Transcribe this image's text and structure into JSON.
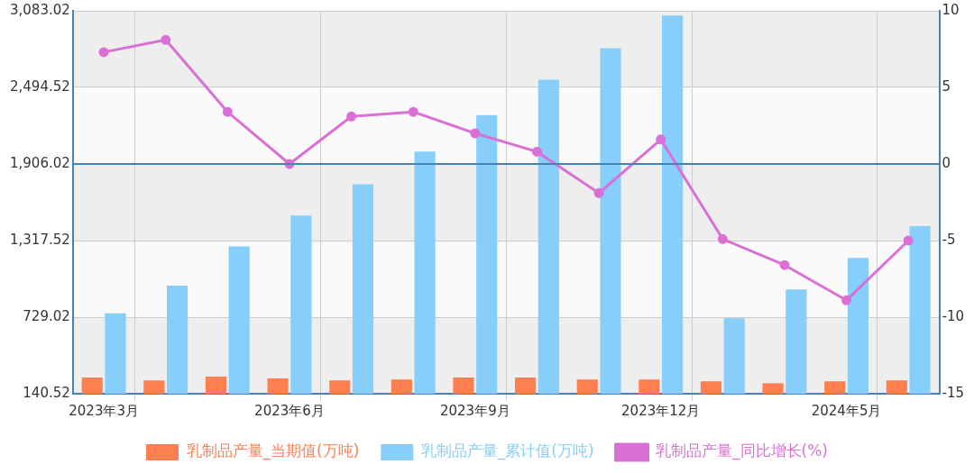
{
  "chart_data": {
    "type": "bar",
    "categories": [
      "2023年3月",
      null,
      null,
      "2023年6月",
      null,
      null,
      "2023年9月",
      null,
      null,
      "2023年12月",
      null,
      null,
      "2024年5月",
      null
    ],
    "series": [
      {
        "name": "乳制品产量_当期值(万吨)",
        "color": "#ff7f50",
        "values": [
          265,
          243,
          272,
          258,
          243,
          250,
          265,
          265,
          250,
          250,
          236,
          221,
          236,
          243
        ]
      },
      {
        "name": "乳制品产量_累计值(万吨)",
        "color": "#87cefa",
        "values": [
          758,
          972,
          1273,
          1509,
          1751,
          2002,
          2281,
          2553,
          2796,
          3046,
          721,
          942,
          1185,
          1428
        ]
      },
      {
        "name": "乳制品产量_同比增长(%)",
        "type": "line",
        "axis": "y2",
        "color": "#da70d6",
        "marker": "circle",
        "line_style": "solid",
        "values": [
          7.3,
          8.1,
          3.4,
          0,
          3.1,
          3.4,
          2.0,
          0.8,
          -1.9,
          1.6,
          -4.9,
          -6.6,
          -8.9,
          -5.0
        ]
      }
    ],
    "ylim": [
      140.52,
      3083.02
    ],
    "yticks": [
      {
        "value": 140.52,
        "label": "140.52"
      },
      {
        "value": 729.02,
        "label": "729.02"
      },
      {
        "value": 1317.52,
        "label": "1,317.52"
      },
      {
        "value": 1906.02,
        "label": "1,906.02"
      },
      {
        "value": 2494.52,
        "label": "2,494.52"
      },
      {
        "value": 3083.02,
        "label": "3,083.02"
      }
    ],
    "y2lim": [
      -15,
      10
    ],
    "y2ticks": [
      -15,
      -10,
      -5,
      0,
      5,
      10
    ],
    "ref_lines": [
      {
        "axis": "y2",
        "value": 0,
        "color": "#4682b4"
      }
    ],
    "grid": true,
    "legend": "bottom"
  }
}
